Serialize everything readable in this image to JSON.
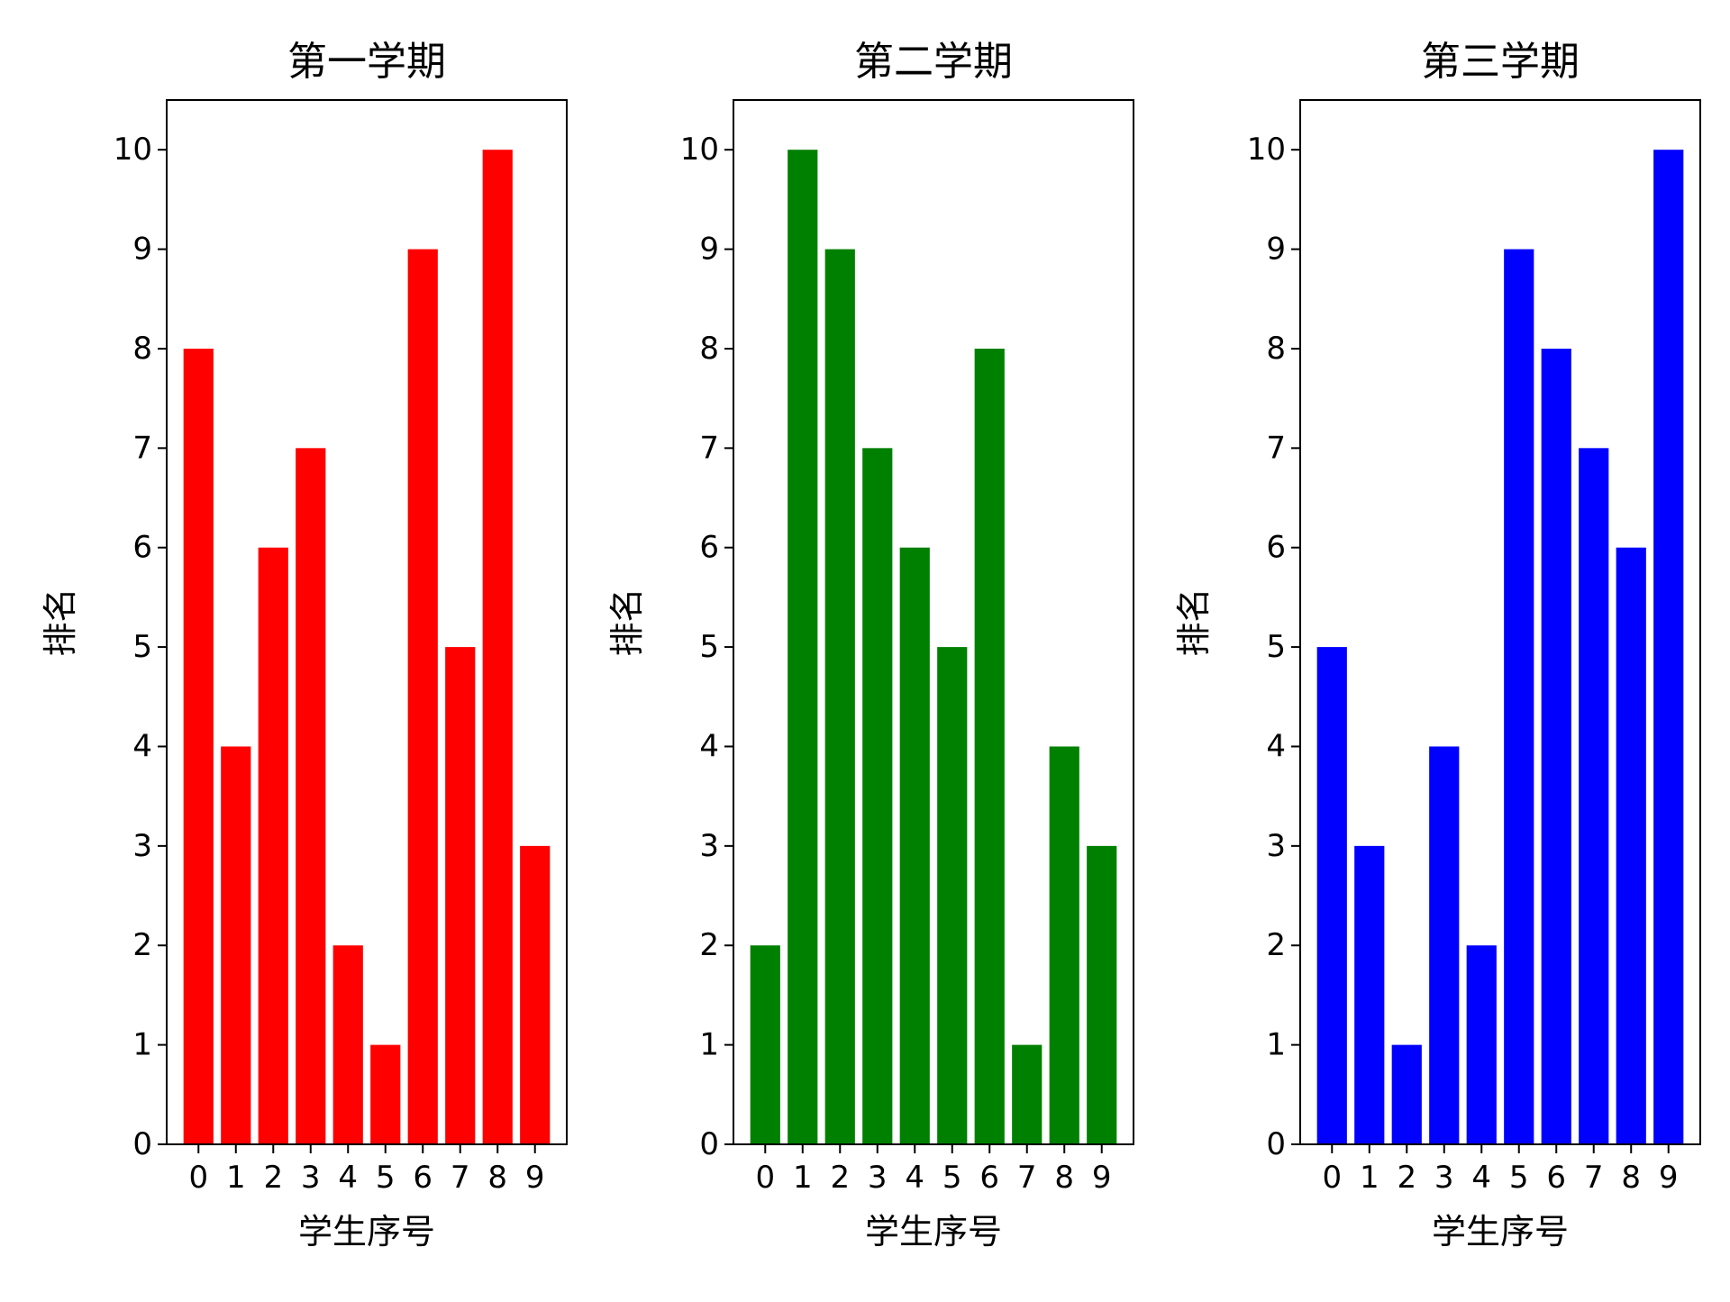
{
  "chart_data": [
    {
      "type": "bar",
      "title": "第一学期",
      "xlabel": "学生序号",
      "ylabel": "排名",
      "categories": [
        "0",
        "1",
        "2",
        "3",
        "4",
        "5",
        "6",
        "7",
        "8",
        "9"
      ],
      "values": [
        8,
        4,
        6,
        7,
        2,
        1,
        9,
        5,
        10,
        3
      ],
      "color": "#ff0000",
      "ylim": [
        0,
        10.5
      ],
      "yticks": [
        "0",
        "1",
        "2",
        "3",
        "4",
        "5",
        "6",
        "7",
        "8",
        "9",
        "10"
      ],
      "grid": false
    },
    {
      "type": "bar",
      "title": "第二学期",
      "xlabel": "学生序号",
      "ylabel": "排名",
      "categories": [
        "0",
        "1",
        "2",
        "3",
        "4",
        "5",
        "6",
        "7",
        "8",
        "9"
      ],
      "values": [
        2,
        10,
        9,
        7,
        6,
        5,
        8,
        1,
        4,
        3
      ],
      "color": "#008000",
      "ylim": [
        0,
        10.5
      ],
      "yticks": [
        "0",
        "1",
        "2",
        "3",
        "4",
        "5",
        "6",
        "7",
        "8",
        "9",
        "10"
      ],
      "grid": false
    },
    {
      "type": "bar",
      "title": "第三学期",
      "xlabel": "学生序号",
      "ylabel": "排名",
      "categories": [
        "0",
        "1",
        "2",
        "3",
        "4",
        "5",
        "6",
        "7",
        "8",
        "9"
      ],
      "values": [
        5,
        3,
        1,
        4,
        2,
        9,
        8,
        7,
        6,
        10
      ],
      "color": "#0000ff",
      "ylim": [
        0,
        10.5
      ],
      "yticks": [
        "0",
        "1",
        "2",
        "3",
        "4",
        "5",
        "6",
        "7",
        "8",
        "9",
        "10"
      ],
      "grid": false
    }
  ]
}
